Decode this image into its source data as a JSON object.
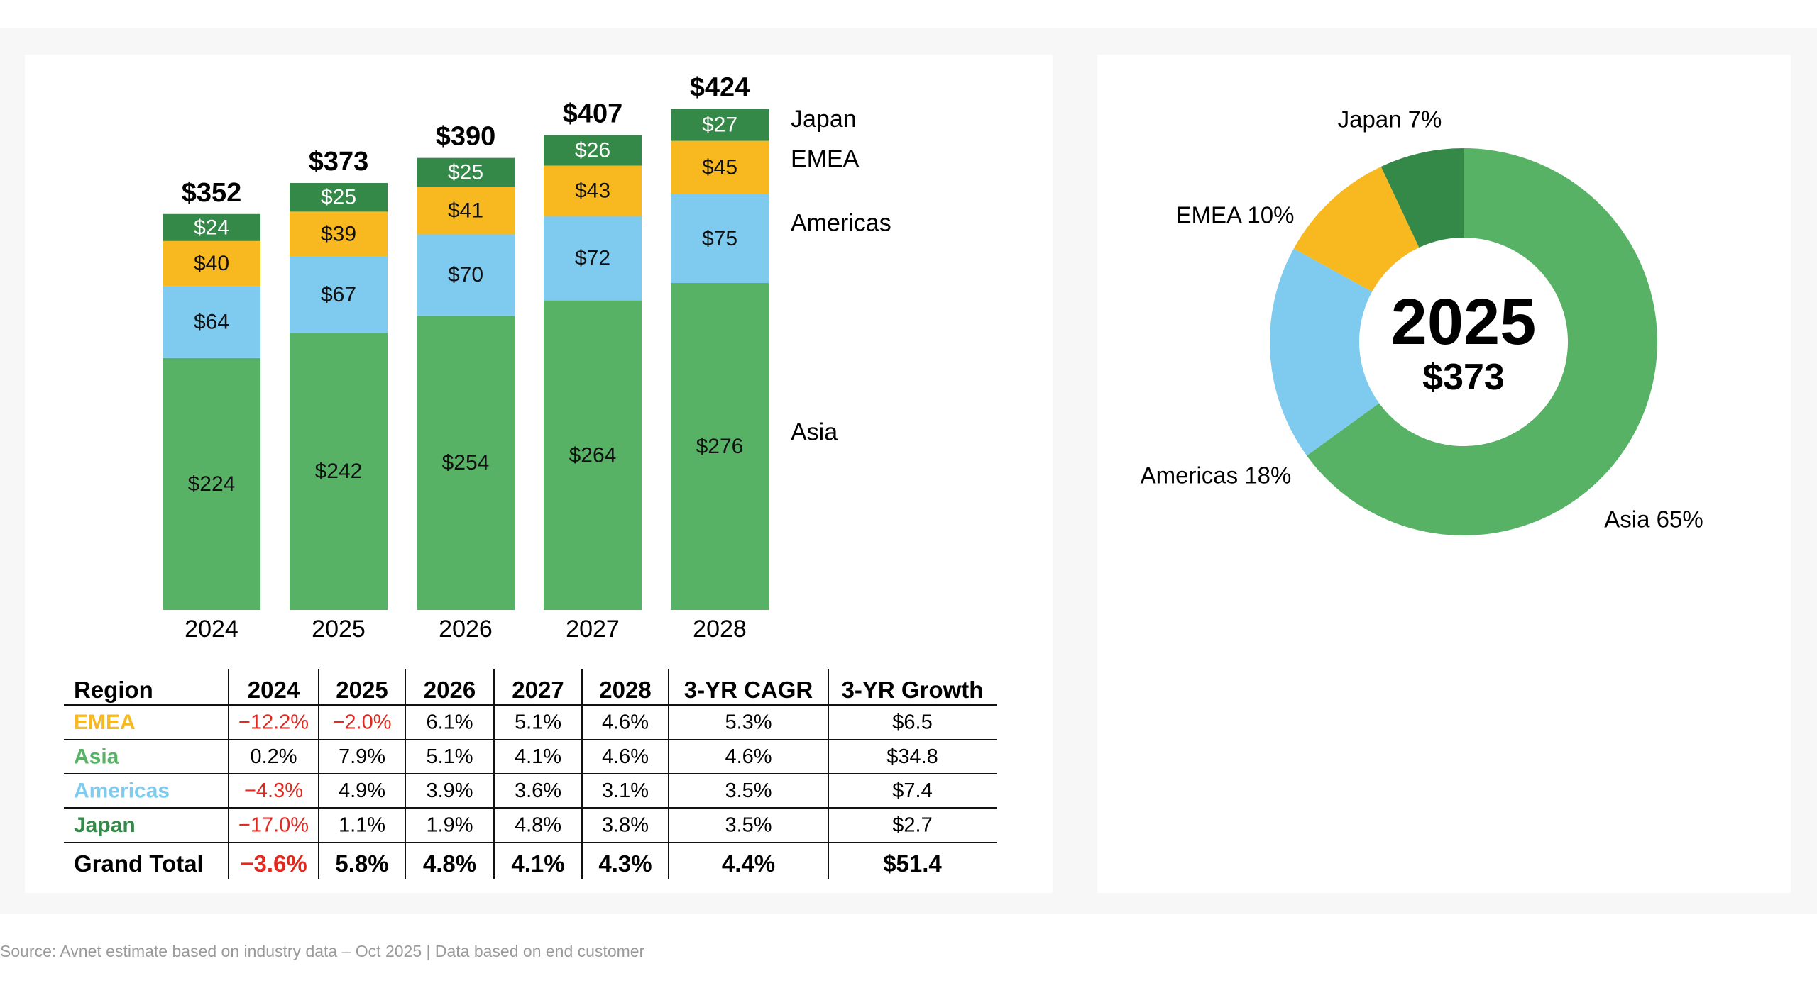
{
  "colors": {
    "Asia": "#58b266",
    "Americas": "#7fcbf0",
    "EMEA": "#f8b81f",
    "Japan": "#358948",
    "negative": "#e02a20",
    "text": "#000000",
    "panel_bg": "#f7f7f7",
    "footer": "#9a9a9a"
  },
  "chart_data": [
    {
      "type": "bar",
      "stacked": true,
      "title": "",
      "xlabel": "",
      "ylabel": "",
      "categories": [
        "2024",
        "2025",
        "2026",
        "2027",
        "2028"
      ],
      "series": [
        {
          "name": "Asia",
          "values": [
            224,
            242,
            254,
            264,
            276
          ],
          "labels": [
            "$224",
            "$242",
            "$254",
            "$264",
            "$276"
          ]
        },
        {
          "name": "Americas",
          "values": [
            64,
            67,
            70,
            72,
            75
          ],
          "labels": [
            "$64",
            "$67",
            "$70",
            "$72",
            "$75"
          ]
        },
        {
          "name": "EMEA",
          "values": [
            40,
            39,
            41,
            43,
            45
          ],
          "labels": [
            "$40",
            "$39",
            "$41",
            "$43",
            "$45"
          ]
        },
        {
          "name": "Japan",
          "values": [
            24,
            25,
            25,
            26,
            27
          ],
          "labels": [
            "$24",
            "$25",
            "$25",
            "$26",
            "$27"
          ]
        }
      ],
      "totals": [
        352,
        373,
        390,
        407,
        424
      ],
      "total_labels": [
        "$352",
        "$373",
        "$390",
        "$407",
        "$424"
      ],
      "legend": [
        "Japan",
        "EMEA",
        "Americas",
        "Asia"
      ],
      "legend_position": "right",
      "grid": false
    },
    {
      "type": "pie",
      "donut": true,
      "center_title": "2025",
      "center_value": "$373",
      "slices": [
        {
          "name": "Asia",
          "value": 65,
          "label": "Asia 65%"
        },
        {
          "name": "Americas",
          "value": 18,
          "label": "Americas 18%"
        },
        {
          "name": "EMEA",
          "value": 10,
          "label": "EMEA 10%"
        },
        {
          "name": "Japan",
          "value": 7,
          "label": "Japan 7%"
        }
      ]
    },
    {
      "type": "table",
      "columns": [
        "Region",
        "2024",
        "2025",
        "2026",
        "2027",
        "2028",
        "3-YR CAGR",
        "3-YR Growth"
      ],
      "rows": [
        {
          "region": "EMEA",
          "cells": [
            "-12.2%",
            "-2.0%",
            "6.1%",
            "5.1%",
            "4.6%",
            "5.3%",
            "$6.5"
          ]
        },
        {
          "region": "Asia",
          "cells": [
            "0.2%",
            "7.9%",
            "5.1%",
            "4.1%",
            "4.6%",
            "4.6%",
            "$34.8"
          ]
        },
        {
          "region": "Americas",
          "cells": [
            "-4.3%",
            "4.9%",
            "3.9%",
            "3.6%",
            "3.1%",
            "3.5%",
            "$7.4"
          ]
        },
        {
          "region": "Japan",
          "cells": [
            "-17.0%",
            "1.1%",
            "1.9%",
            "4.8%",
            "3.8%",
            "3.5%",
            "$2.7"
          ]
        }
      ],
      "total_row": {
        "region": "Grand Total",
        "cells": [
          "-3.6%",
          "5.8%",
          "4.8%",
          "4.1%",
          "4.3%",
          "4.4%",
          "$51.4"
        ]
      }
    }
  ],
  "footer": {
    "source": "Source: Avnet estimate based on industry data – Oct 2025 | Data based on end customer"
  }
}
